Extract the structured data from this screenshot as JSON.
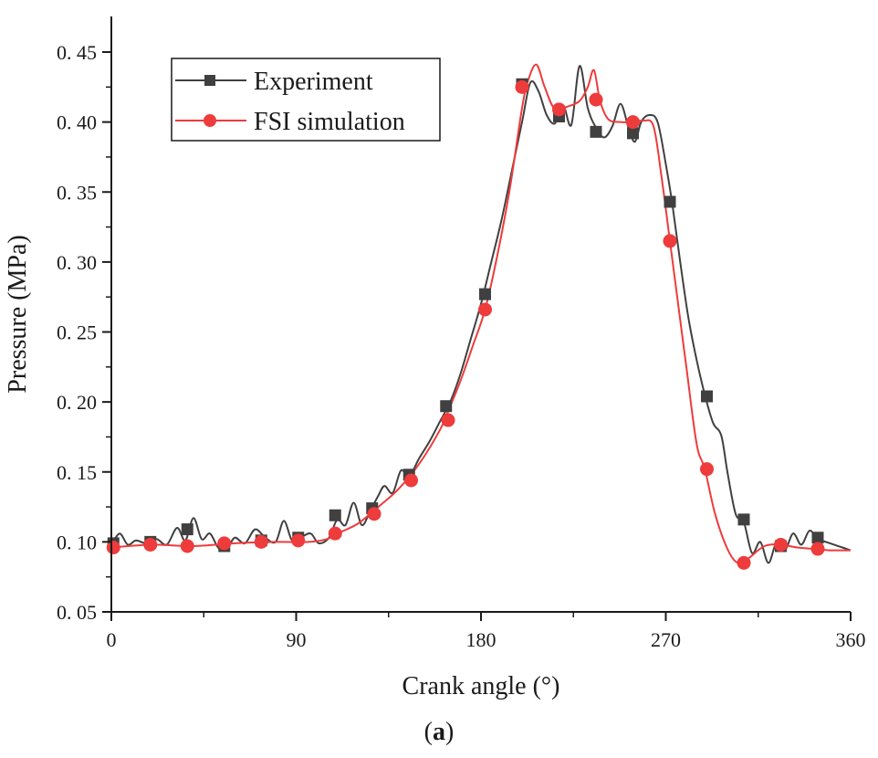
{
  "chart_data": {
    "type": "line",
    "title": "",
    "xlabel": "Crank angle (°)",
    "ylabel": "Pressure (MPa)",
    "xlim": [
      0,
      360
    ],
    "ylim": [
      0.05,
      0.45
    ],
    "xticks": [
      0,
      90,
      180,
      270,
      360
    ],
    "xtick_labels": [
      "0",
      "90",
      "180",
      "270",
      "360"
    ],
    "yticks": [
      0.05,
      0.1,
      0.15,
      0.2,
      0.25,
      0.3,
      0.35,
      0.4,
      0.45
    ],
    "ytick_labels": [
      "0. 05",
      "0. 10",
      "0. 15",
      "0. 20",
      "0. 25",
      "0. 30",
      "0. 35",
      "0. 40",
      "0. 45"
    ],
    "grid": false,
    "legend_position": "top-left",
    "series": [
      {
        "name": "Experiment",
        "color": "#404040",
        "marker": "square",
        "line": [
          [
            0,
            0.097
          ],
          [
            4,
            0.106
          ],
          [
            8,
            0.098
          ],
          [
            12,
            0.101
          ],
          [
            17,
            0.099
          ],
          [
            22,
            0.102
          ],
          [
            27,
            0.098
          ],
          [
            32,
            0.11
          ],
          [
            36,
            0.101
          ],
          [
            40,
            0.117
          ],
          [
            44,
            0.102
          ],
          [
            48,
            0.106
          ],
          [
            52,
            0.096
          ],
          [
            56,
            0.094
          ],
          [
            60,
            0.103
          ],
          [
            65,
            0.099
          ],
          [
            70,
            0.109
          ],
          [
            75,
            0.103
          ],
          [
            80,
            0.1
          ],
          [
            84,
            0.115
          ],
          [
            88,
            0.101
          ],
          [
            92,
            0.103
          ],
          [
            97,
            0.106
          ],
          [
            101,
            0.099
          ],
          [
            106,
            0.103
          ],
          [
            110,
            0.116
          ],
          [
            114,
            0.112
          ],
          [
            118,
            0.128
          ],
          [
            122,
            0.112
          ],
          [
            126,
            0.122
          ],
          [
            130,
            0.133
          ],
          [
            133,
            0.14
          ],
          [
            137,
            0.135
          ],
          [
            141,
            0.151
          ],
          [
            145,
            0.147
          ],
          [
            150,
            0.16
          ],
          [
            155,
            0.172
          ],
          [
            160,
            0.186
          ],
          [
            165,
            0.2
          ],
          [
            170,
            0.22
          ],
          [
            175,
            0.245
          ],
          [
            180,
            0.27
          ],
          [
            185,
            0.3
          ],
          [
            190,
            0.33
          ],
          [
            195,
            0.365
          ],
          [
            200,
            0.4
          ],
          [
            204,
            0.428
          ],
          [
            208,
            0.422
          ],
          [
            212,
            0.405
          ],
          [
            216,
            0.399
          ],
          [
            220,
            0.412
          ],
          [
            224,
            0.398
          ],
          [
            228,
            0.44
          ],
          [
            232,
            0.41
          ],
          [
            236,
            0.396
          ],
          [
            240,
            0.389
          ],
          [
            244,
            0.397
          ],
          [
            248,
            0.413
          ],
          [
            252,
            0.395
          ],
          [
            255,
            0.386
          ],
          [
            258,
            0.4
          ],
          [
            262,
            0.405
          ],
          [
            266,
            0.4
          ],
          [
            270,
            0.37
          ],
          [
            273,
            0.343
          ],
          [
            277,
            0.3
          ],
          [
            281,
            0.26
          ],
          [
            285,
            0.23
          ],
          [
            289,
            0.205
          ],
          [
            293,
            0.185
          ],
          [
            297,
            0.176
          ],
          [
            300,
            0.15
          ],
          [
            304,
            0.12
          ],
          [
            308,
            0.114
          ],
          [
            312,
            0.092
          ],
          [
            316,
            0.1
          ],
          [
            320,
            0.085
          ],
          [
            324,
            0.1
          ],
          [
            328,
            0.094
          ],
          [
            332,
            0.106
          ],
          [
            336,
            0.098
          ],
          [
            340,
            0.108
          ],
          [
            344,
            0.102
          ],
          [
            348,
            0.1
          ],
          [
            352,
            0.098
          ],
          [
            356,
            0.096
          ],
          [
            360,
            0.094
          ]
        ],
        "markers": [
          [
            1,
            0.099
          ],
          [
            19,
            0.1
          ],
          [
            37,
            0.109
          ],
          [
            55,
            0.097
          ],
          [
            73,
            0.101
          ],
          [
            91,
            0.103
          ],
          [
            109,
            0.119
          ],
          [
            127,
            0.124
          ],
          [
            145,
            0.148
          ],
          [
            163,
            0.197
          ],
          [
            182,
            0.277
          ],
          [
            200,
            0.427
          ],
          [
            218,
            0.404
          ],
          [
            236,
            0.393
          ],
          [
            254,
            0.392
          ],
          [
            272,
            0.343
          ],
          [
            290,
            0.204
          ],
          [
            308,
            0.116
          ],
          [
            326,
            0.097
          ],
          [
            344,
            0.103
          ]
        ]
      },
      {
        "name": "FSI simulation",
        "color": "#ee3b3b",
        "marker": "circle",
        "line": [
          [
            0,
            0.096
          ],
          [
            20,
            0.098
          ],
          [
            40,
            0.097
          ],
          [
            60,
            0.099
          ],
          [
            80,
            0.1
          ],
          [
            96,
            0.1
          ],
          [
            105,
            0.102
          ],
          [
            110,
            0.106
          ],
          [
            120,
            0.113
          ],
          [
            130,
            0.125
          ],
          [
            140,
            0.138
          ],
          [
            150,
            0.156
          ],
          [
            160,
            0.18
          ],
          [
            165,
            0.197
          ],
          [
            170,
            0.215
          ],
          [
            176,
            0.24
          ],
          [
            182,
            0.266
          ],
          [
            188,
            0.305
          ],
          [
            194,
            0.352
          ],
          [
            200,
            0.41
          ],
          [
            203,
            0.43
          ],
          [
            207,
            0.441
          ],
          [
            211,
            0.425
          ],
          [
            216,
            0.409
          ],
          [
            222,
            0.411
          ],
          [
            228,
            0.415
          ],
          [
            232,
            0.425
          ],
          [
            235,
            0.437
          ],
          [
            238,
            0.415
          ],
          [
            242,
            0.402
          ],
          [
            248,
            0.4
          ],
          [
            254,
            0.4
          ],
          [
            259,
            0.401
          ],
          [
            264,
            0.397
          ],
          [
            268,
            0.36
          ],
          [
            272,
            0.315
          ],
          [
            276,
            0.27
          ],
          [
            280,
            0.225
          ],
          [
            285,
            0.17
          ],
          [
            289,
            0.152
          ],
          [
            294,
            0.12
          ],
          [
            300,
            0.095
          ],
          [
            305,
            0.085
          ],
          [
            310,
            0.088
          ],
          [
            318,
            0.097
          ],
          [
            326,
            0.098
          ],
          [
            334,
            0.096
          ],
          [
            342,
            0.095
          ],
          [
            350,
            0.094
          ],
          [
            360,
            0.094
          ]
        ],
        "markers": [
          [
            1,
            0.096
          ],
          [
            19,
            0.098
          ],
          [
            37,
            0.097
          ],
          [
            55,
            0.099
          ],
          [
            73,
            0.1
          ],
          [
            91,
            0.101
          ],
          [
            109,
            0.106
          ],
          [
            128,
            0.12
          ],
          [
            146,
            0.144
          ],
          [
            164,
            0.187
          ],
          [
            182,
            0.266
          ],
          [
            200,
            0.425
          ],
          [
            218,
            0.409
          ],
          [
            236,
            0.416
          ],
          [
            254,
            0.4
          ],
          [
            272,
            0.315
          ],
          [
            290,
            0.152
          ],
          [
            308,
            0.085
          ],
          [
            326,
            0.098
          ],
          [
            344,
            0.095
          ]
        ]
      }
    ]
  },
  "panel_label": "(a)"
}
